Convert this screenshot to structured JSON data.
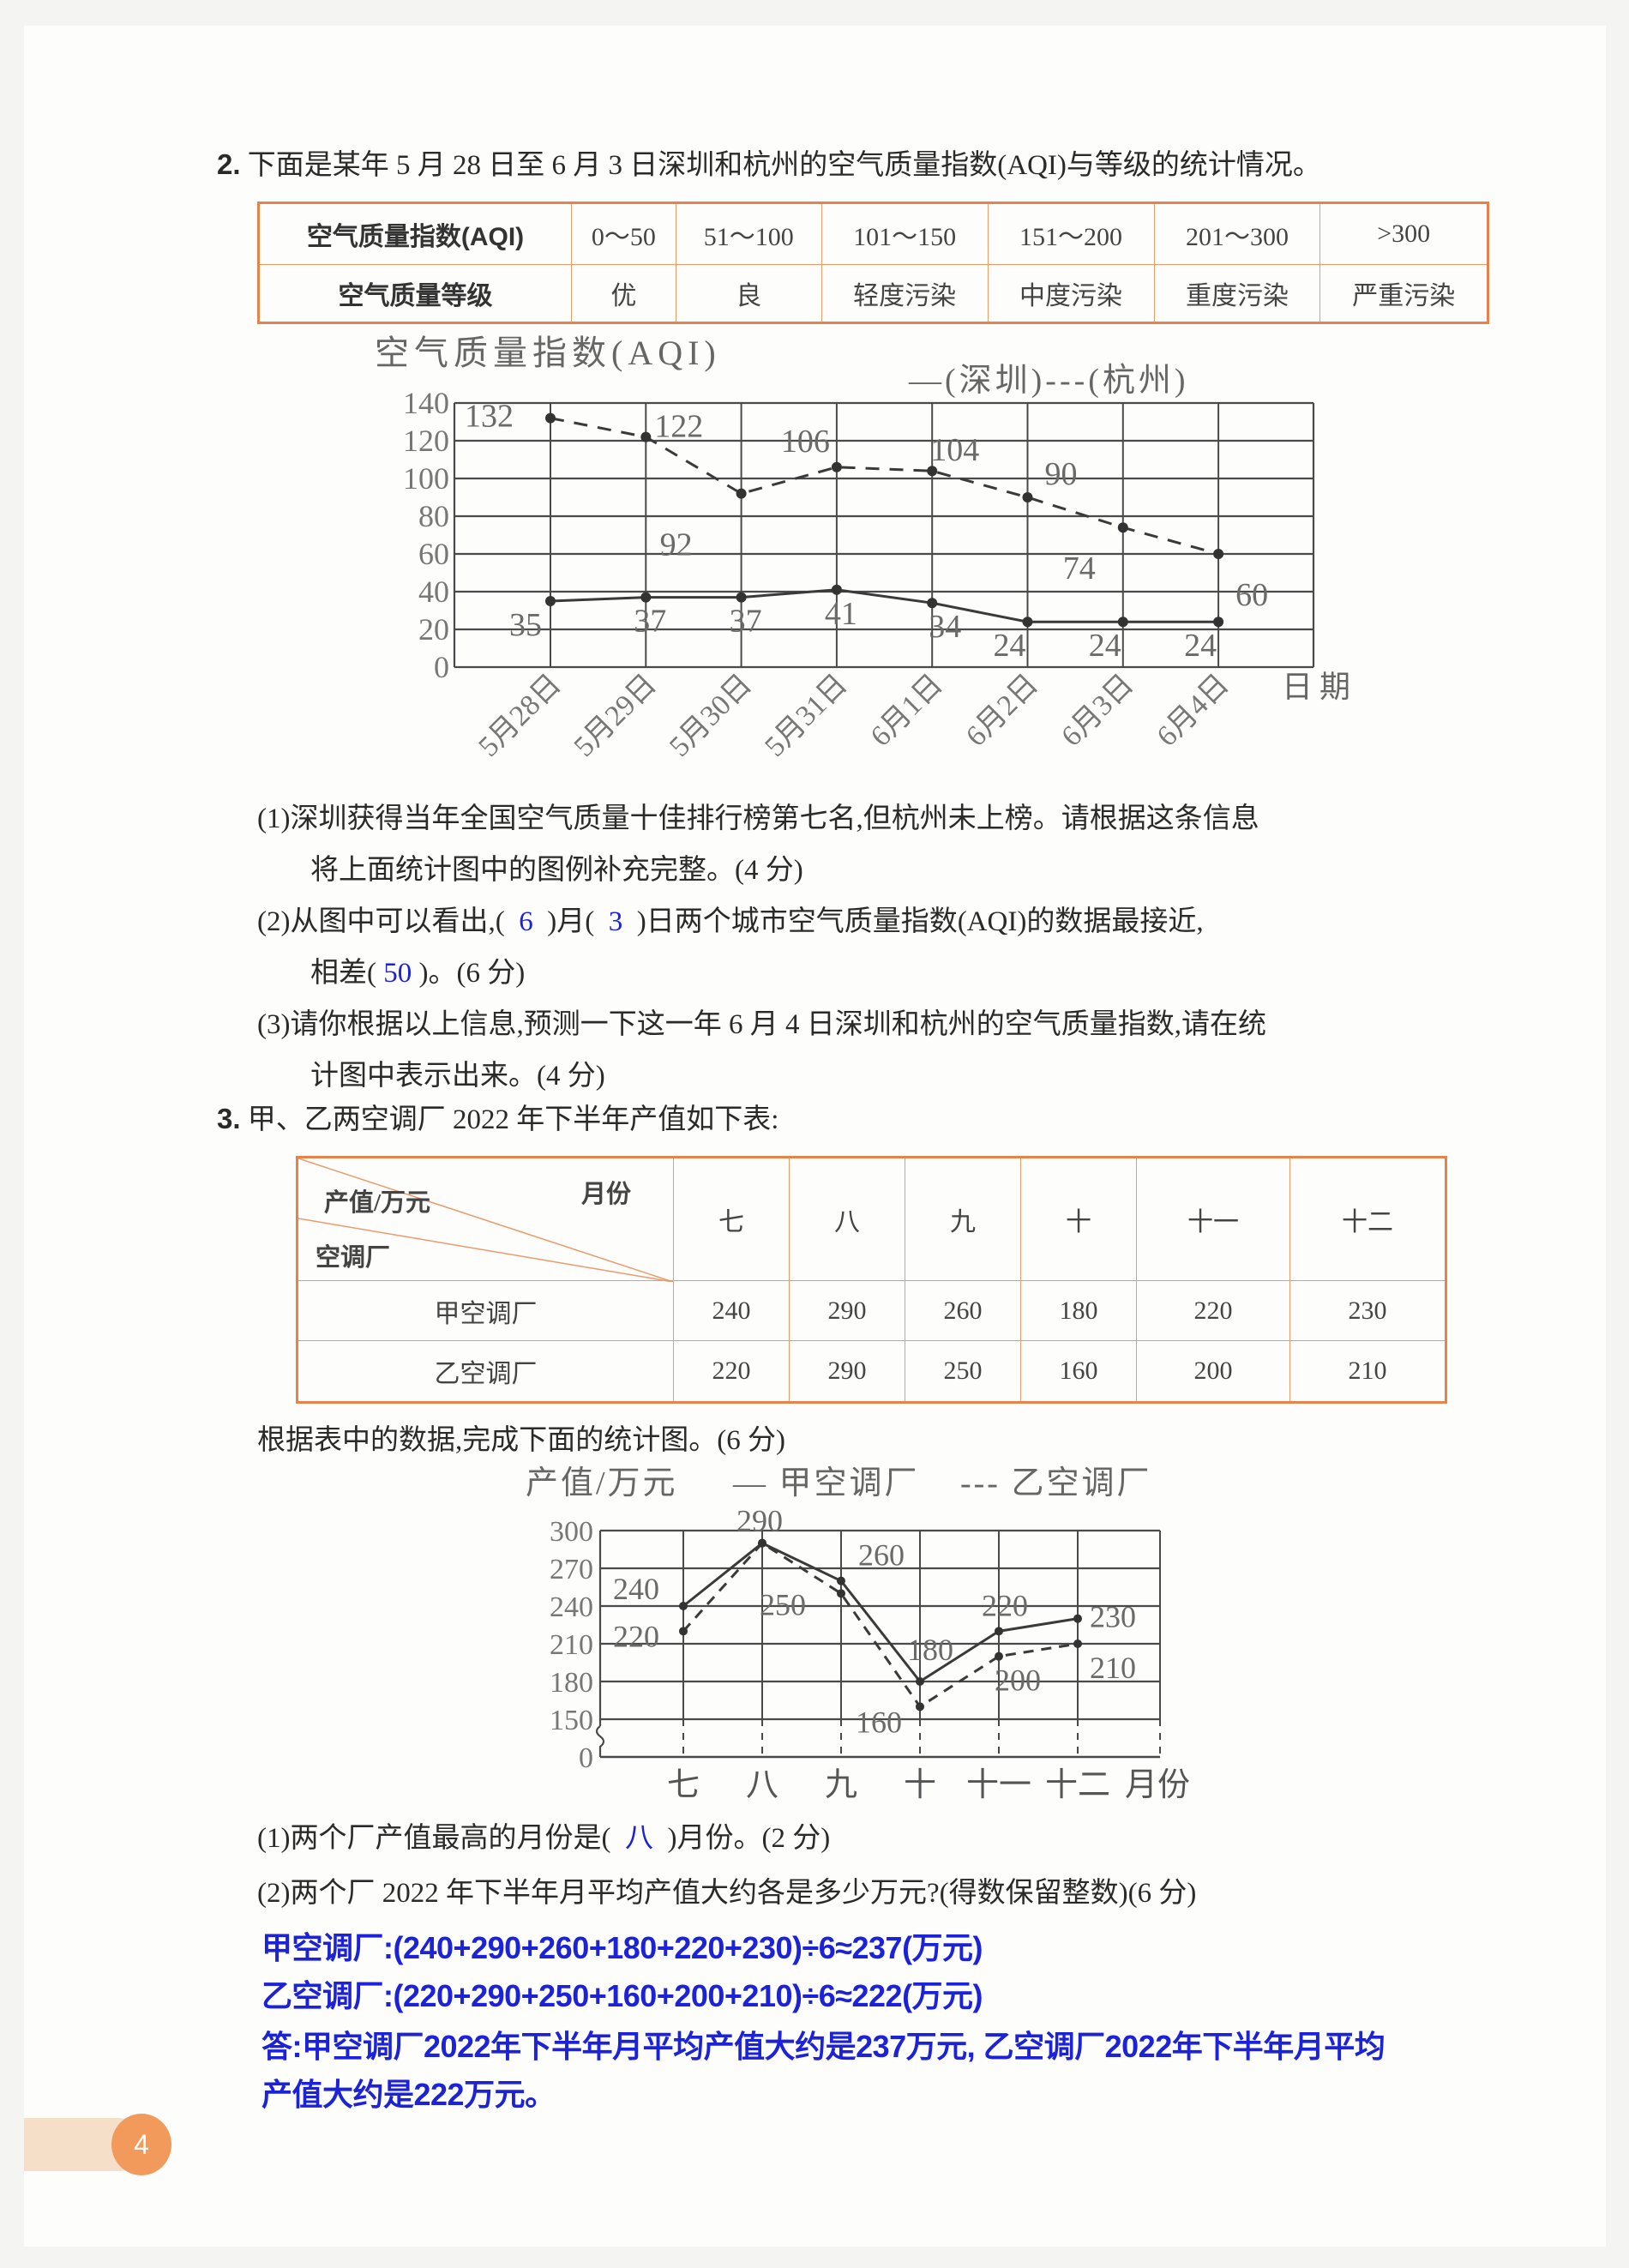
{
  "q2": {
    "number": "2.",
    "text": "下面是某年 5 月 28 日至 6 月 3 日深圳和杭州的空气质量指数(AQI)与等级的统计情况。",
    "table": {
      "row_headers": [
        "空气质量指数(AQI)",
        "空气质量等级"
      ],
      "aqi_ranges": [
        "0～50",
        "51～100",
        "101～150",
        "151～200",
        "201～300",
        ">300"
      ],
      "levels": [
        "优",
        "良",
        "轻度污染",
        "中度污染",
        "重度污染",
        "严重污染"
      ]
    },
    "sub1": [
      "(1)深圳获得当年全国空气质量十佳排行榜第七名,但杭州未上榜。请根据这条信息",
      "将上面统计图中的图例补充完整。(4 分)"
    ],
    "sub2": {
      "p1": "(2)从图中可以看出,(",
      "a1": "6",
      "p2": ")月(",
      "a2": "3",
      "p3": ")日两个城市空气质量指数(AQI)的数据最接近,",
      "p4": "相差(",
      "a3": "50",
      "p5": ")。(6 分)"
    },
    "sub3": [
      "(3)请你根据以上信息,预测一下这一年 6 月 4 日深圳和杭州的空气质量指数,请在统",
      "计图中表示出来。(4 分)"
    ]
  },
  "q3": {
    "number": "3.",
    "text": "甲、乙两空调厂 2022 年下半年产值如下表:",
    "table": {
      "corner_top": "月份",
      "corner_mid": "产值/万元",
      "corner_bottom": "空调厂",
      "months": [
        "七",
        "八",
        "九",
        "十",
        "十一",
        "十二"
      ],
      "rows": [
        {
          "name": "甲空调厂",
          "values": [
            "240",
            "290",
            "260",
            "180",
            "220",
            "230"
          ]
        },
        {
          "name": "乙空调厂",
          "values": [
            "220",
            "290",
            "250",
            "160",
            "200",
            "210"
          ]
        }
      ]
    },
    "instruction": "根据表中的数据,完成下面的统计图。(6 分)",
    "sub1": {
      "p1": "(1)两个厂产值最高的月份是(",
      "a1": "八",
      "p2": ")月份。(2 分)"
    },
    "sub2": "(2)两个厂 2022 年下半年月平均产值大约各是多少万元?(得数保留整数)(6 分)",
    "answers": [
      "甲空调厂:(240+290+260+180+220+230)÷6≈237(万元)",
      "乙空调厂:(220+290+250+160+200+210)÷6≈222(万元)",
      "答:甲空调厂2022年下半年月平均产值大约是237万元, 乙空调厂2022年下半年月平均",
      "产值大约是222万元。"
    ]
  },
  "page_number": "4",
  "answer_color": "#1c22d8",
  "accent_color": "#e6834a",
  "chart_data": [
    {
      "type": "line",
      "title": "空气质量指数(AQI)",
      "xlabel": "日期",
      "categories": [
        "5月28日",
        "5月29日",
        "5月30日",
        "5月31日",
        "6月1日",
        "6月2日",
        "6月3日",
        "6月4日"
      ],
      "ylim": [
        0,
        140
      ],
      "yticks": [
        0,
        20,
        40,
        60,
        80,
        100,
        120,
        140
      ],
      "grid": true,
      "legend_placement": "top-right",
      "series": [
        {
          "name": "深圳",
          "style": "solid",
          "legend": "—(深圳)",
          "values": [
            35,
            37,
            37,
            41,
            34,
            24,
            24,
            24
          ]
        },
        {
          "name": "杭州",
          "style": "dashed",
          "legend": "---(杭州)",
          "values": [
            132,
            122,
            92,
            106,
            104,
            90,
            74,
            60
          ]
        }
      ]
    },
    {
      "type": "line",
      "title": "产值/万元",
      "xlabel": "月份",
      "categories": [
        "七",
        "八",
        "九",
        "十",
        "十一",
        "十二"
      ],
      "ylim": [
        150,
        300
      ],
      "yticks": [
        0,
        150,
        180,
        210,
        240,
        270,
        300
      ],
      "axis_break": true,
      "grid": true,
      "legend_placement": "top",
      "series": [
        {
          "name": "甲空调厂",
          "style": "solid",
          "legend": "— 甲空调厂",
          "values": [
            240,
            290,
            260,
            180,
            220,
            230
          ]
        },
        {
          "name": "乙空调厂",
          "style": "dashed",
          "legend": "--- 乙空调厂",
          "values": [
            220,
            290,
            250,
            160,
            200,
            210
          ]
        }
      ]
    }
  ]
}
